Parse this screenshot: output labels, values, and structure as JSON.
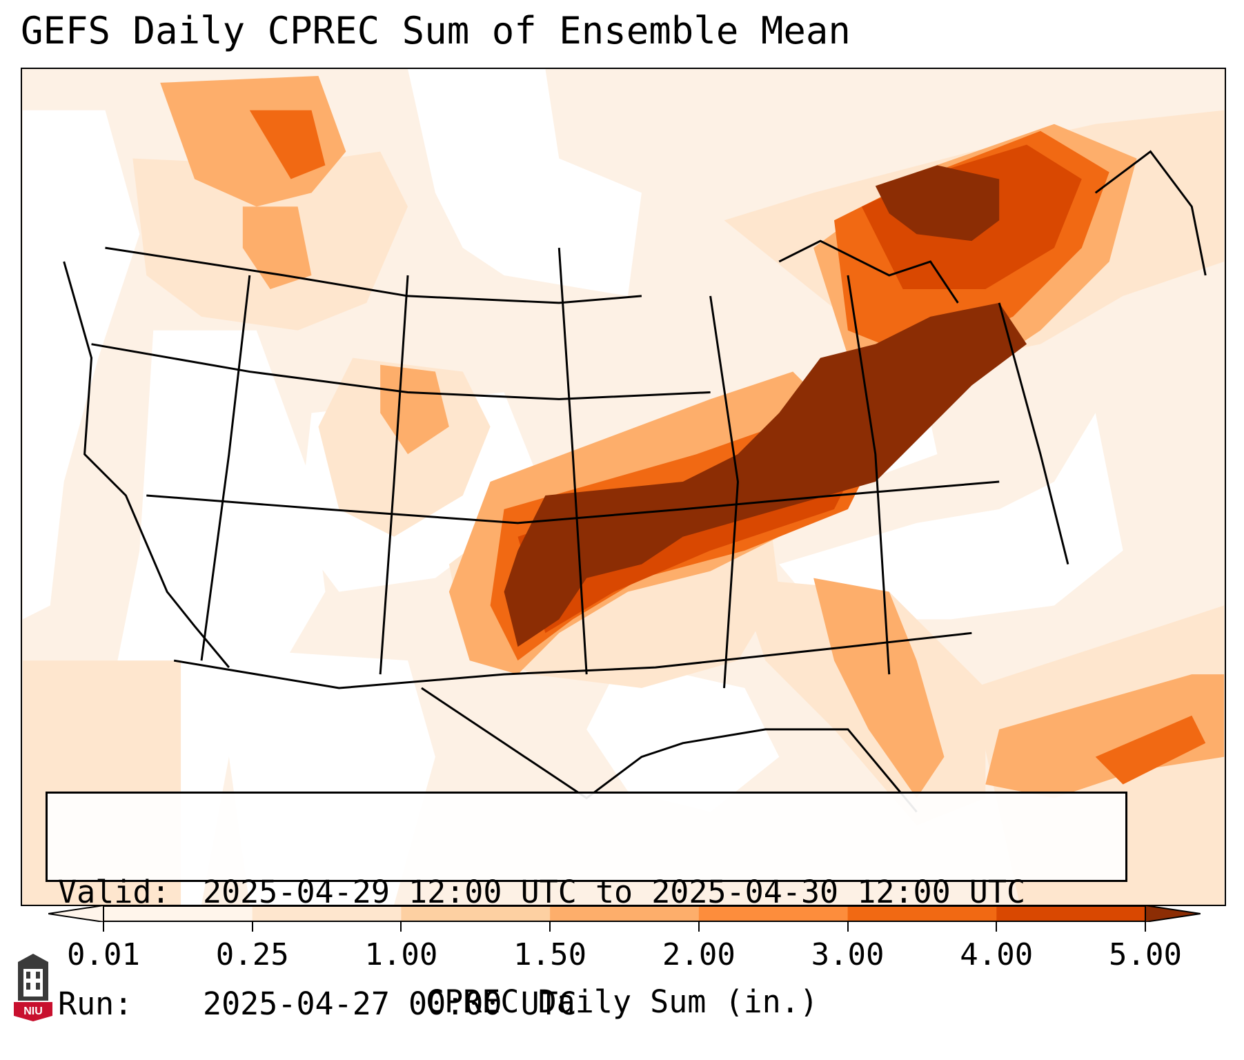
{
  "title": "GEFS Daily CPREC Sum of Ensemble Mean",
  "valid_box": {
    "valid_label": "Valid:",
    "valid_text": "2025-04-29 12:00 UTC to 2025-04-30 12:00 UTC",
    "run_label": "Run:",
    "run_text": "2025-04-27 00:00 UTC"
  },
  "colorbar": {
    "label": "CPREC Daily Sum (in.)",
    "ticks": [
      "0.01",
      "0.25",
      "1.00",
      "1.50",
      "2.00",
      "3.00",
      "4.00",
      "5.00"
    ],
    "colors": [
      "#fff5eb",
      "#fee6ce",
      "#fdd0a2",
      "#fdae6b",
      "#fd8d3c",
      "#f16913",
      "#d94801",
      "#8c2d04"
    ]
  },
  "map": {
    "fill_background": "#fdf1e5",
    "land_low": "#fee6ce",
    "heavy_color": "#8c2d04",
    "border_color": "#000000"
  },
  "logo": {
    "text": "NIU"
  }
}
